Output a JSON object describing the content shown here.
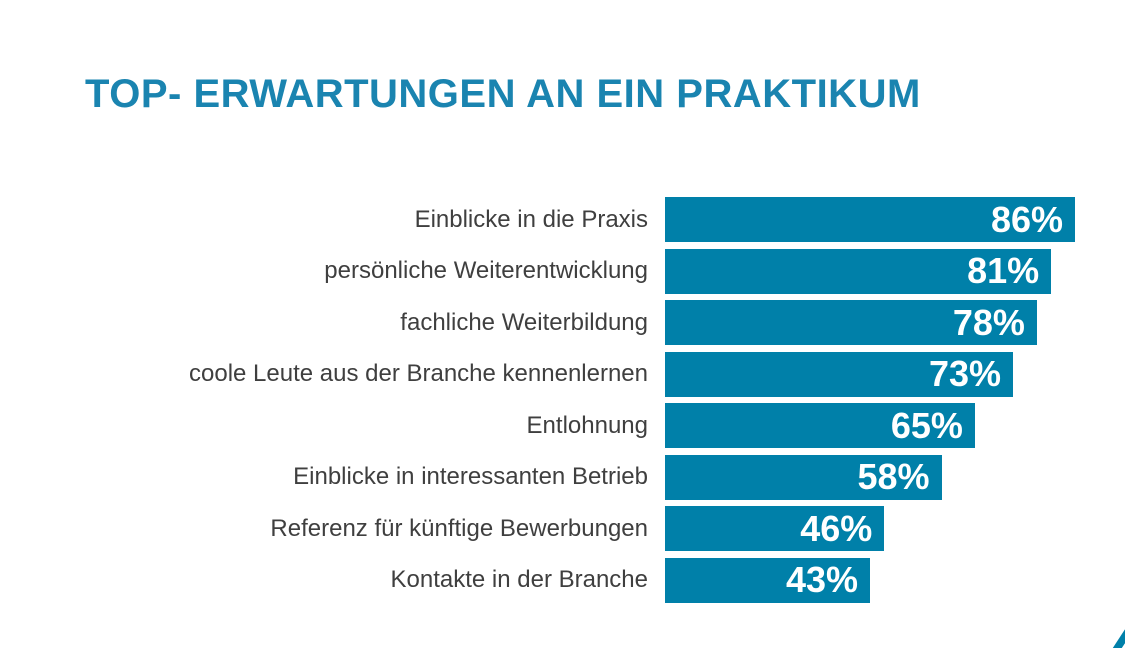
{
  "header": {
    "title": "TOP- ERWARTUNGEN AN EIN PRAKTIKUM"
  },
  "colors": {
    "title": "#1a84b0",
    "bar": "#0080a9",
    "category_label": "#3f3f3f",
    "value_label": "#ffffff",
    "background": "#ffffff",
    "corner_slash": "#0080a9"
  },
  "chart_data": {
    "type": "bar",
    "orientation": "horizontal",
    "title": "TOP- ERWARTUNGEN AN EIN PRAKTIKUM",
    "categories": [
      "Einblicke in die Praxis",
      "persönliche Weiterentwicklung",
      "fachliche Weiterbildung",
      "coole Leute aus der Branche kennenlernen",
      "Entlohnung",
      "Einblicke in interessanten Betrieb",
      "Referenz für künftige Bewerbungen",
      "Kontakte in der Branche"
    ],
    "values": [
      86,
      81,
      78,
      73,
      65,
      58,
      46,
      43
    ],
    "value_labels": [
      "86%",
      "81%",
      "78%",
      "73%",
      "65%",
      "58%",
      "46%",
      "43%"
    ],
    "value_suffix": "%",
    "xlim": [
      0,
      86
    ],
    "grid": false,
    "legend": false,
    "value_label_position": "inside-end",
    "category_label_position": "left"
  }
}
